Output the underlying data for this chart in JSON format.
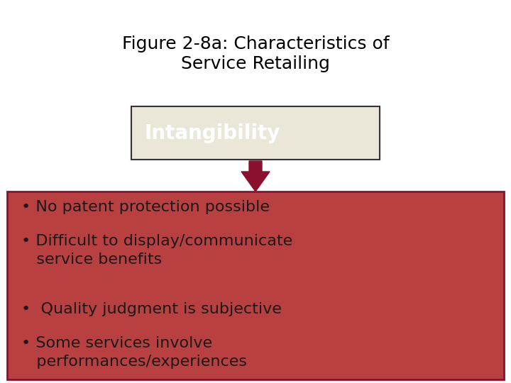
{
  "title": "Figure 2-8a: Characteristics of\nService Retailing",
  "title_fontsize": 18,
  "title_color": "#000000",
  "background_color": "#ffffff",
  "box_label": "Intangibility",
  "box_label_color": "#ffffff",
  "box_bg_color": "#eae6d8",
  "box_border_color": "#333333",
  "arrow_color": "#8b1030",
  "bullet_box_color": "#b94040",
  "bullet_box_border": "#8b1030",
  "bullet_text_color": "#1a1a1a",
  "bullet_fontsize": 16,
  "bullets": [
    "• No patent protection possible",
    "• Difficult to display/communicate\n   service benefits",
    "•  Quality judgment is subjective",
    "• Some services involve\n   performances/experiences"
  ]
}
